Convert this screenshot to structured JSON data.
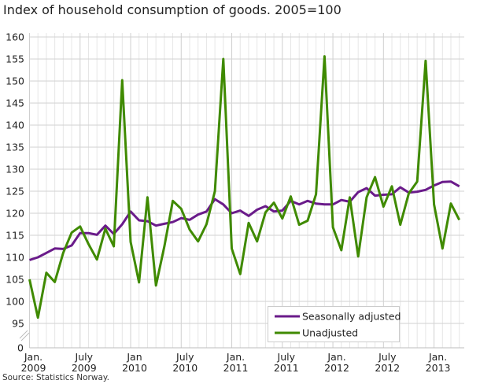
{
  "chart_data": {
    "type": "line",
    "title": "Index of household consumption of goods. 2005=100",
    "source": "Source: Statistics Norway.",
    "x_start": "2009-01",
    "x_end": "2013-04",
    "x_frequency": "monthly",
    "x_tick_labels": [
      {
        "month": "2009-01",
        "line1": "Jan.",
        "line2": "2009"
      },
      {
        "month": "2009-07",
        "line1": "July",
        "line2": "2009"
      },
      {
        "month": "2010-01",
        "line1": "Jan",
        "line2": "2010"
      },
      {
        "month": "2010-07",
        "line1": "July",
        "line2": "2010"
      },
      {
        "month": "2011-01",
        "line1": "Jan.",
        "line2": "2011"
      },
      {
        "month": "2011-07",
        "line1": "July",
        "line2": "2011"
      },
      {
        "month": "2012-01",
        "line1": "Jan.",
        "line2": "2012"
      },
      {
        "month": "2012-07",
        "line1": "July",
        "line2": "2012"
      },
      {
        "month": "2013-01",
        "line1": "Jan.",
        "line2": "2013"
      }
    ],
    "y_ticks": [
      0,
      95,
      100,
      105,
      110,
      115,
      120,
      125,
      130,
      135,
      140,
      145,
      150,
      155,
      160
    ],
    "ylim": [
      95,
      160
    ],
    "y_axis_break": "between 0 and 95",
    "grid": true,
    "legend_placement": "bottom-right",
    "series": [
      {
        "name": "Seasonally adjusted",
        "color": "#6a1b8a",
        "values": [
          109.4,
          110.0,
          111.0,
          112.0,
          111.9,
          112.7,
          115.5,
          115.5,
          115.1,
          117.2,
          115.3,
          117.5,
          120.4,
          118.4,
          118.2,
          117.2,
          117.6,
          118.0,
          118.9,
          118.5,
          119.7,
          120.4,
          123.2,
          122.0,
          120.0,
          120.6,
          119.4,
          120.8,
          121.6,
          120.4,
          120.6,
          122.8,
          122.0,
          122.8,
          122.2,
          122.0,
          122.0,
          123.0,
          122.6,
          124.8,
          125.7,
          124.0,
          124.2,
          124.3,
          125.9,
          124.7,
          124.9,
          125.3,
          126.3,
          127.1,
          127.2,
          126.1
        ]
      },
      {
        "name": "Unadjusted",
        "color": "#3f8a00",
        "values": [
          105.0,
          96.3,
          106.5,
          104.4,
          111.0,
          115.6,
          117.0,
          113.0,
          109.5,
          116.5,
          112.5,
          150.2,
          113.5,
          104.3,
          123.6,
          103.6,
          112.5,
          122.8,
          121.0,
          116.3,
          113.6,
          117.5,
          125.0,
          155.0,
          112.0,
          106.2,
          117.8,
          113.6,
          120.2,
          122.4,
          118.8,
          123.8,
          117.4,
          118.3,
          124.3,
          155.6,
          116.8,
          111.6,
          123.6,
          110.2,
          123.6,
          128.2,
          121.5,
          126.1,
          117.4,
          124.5,
          127.2,
          154.6,
          122.0,
          112.0,
          122.2,
          118.5
        ]
      }
    ]
  }
}
